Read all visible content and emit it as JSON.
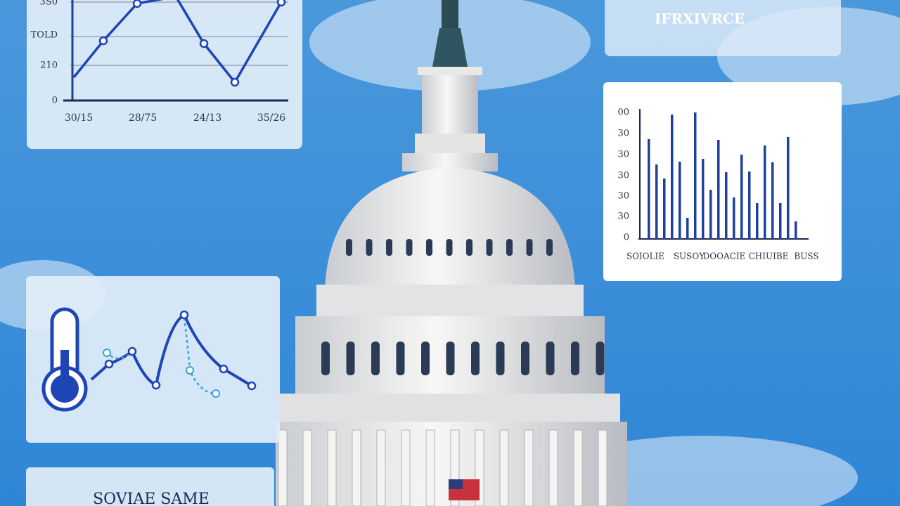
{
  "line_panel": {
    "y_labels": [
      "3S0",
      "TOLD",
      "210",
      "0"
    ],
    "x_labels": [
      "30/15",
      "28/75",
      "24/13",
      "35/26"
    ]
  },
  "header_panel": {
    "title": "IFRXIVRCE"
  },
  "bar_panel": {
    "y_labels": [
      "00",
      "30",
      "30",
      "30",
      "30",
      "30",
      "0"
    ],
    "x_labels": [
      "SOIOLIE",
      "SUSOY",
      "DOOACIE",
      "CHIUIBE",
      "BUSS"
    ]
  },
  "footer_panel": {
    "title": "SOVIAE SAME"
  }
}
